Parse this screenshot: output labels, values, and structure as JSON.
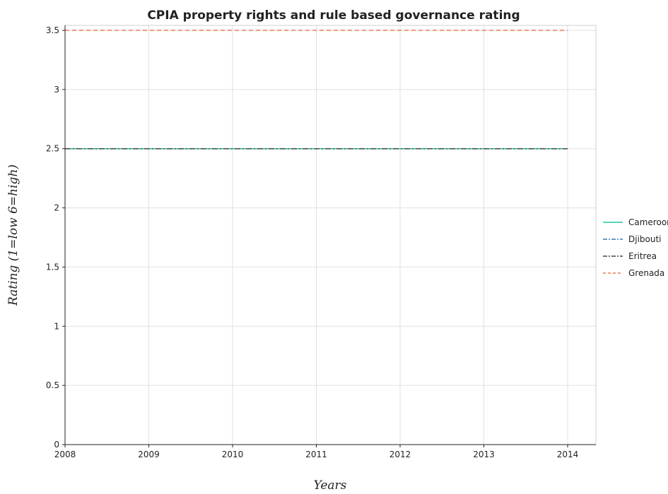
{
  "chart_data": {
    "type": "line",
    "title": "CPIA property rights and rule based governance rating",
    "xlabel": "Years",
    "ylabel": "Rating (1=low 6=high)",
    "categories": [
      "2008",
      "2009",
      "2010",
      "2011",
      "2012",
      "2013",
      "2014"
    ],
    "ylim": [
      0,
      3.5
    ],
    "yticks": [
      "0",
      "0.5",
      "1",
      "1.5",
      "2",
      "2.5",
      "3",
      "3.5"
    ],
    "grid": true,
    "legend_position": "right",
    "series": [
      {
        "name": "Cameroon",
        "values": [
          2.5,
          2.5,
          2.5,
          2.5,
          2.5,
          2.5,
          2.5
        ],
        "color": "#1ec8a0",
        "dash": "solid"
      },
      {
        "name": "Djibouti",
        "values": [
          2.5,
          2.5,
          2.5,
          2.5,
          2.5,
          2.5,
          2.5
        ],
        "color": "#3a78b8",
        "dash": "dashdot"
      },
      {
        "name": "Eritrea",
        "values": [
          2.5,
          2.5,
          2.5,
          2.5,
          2.5,
          2.5,
          2.5
        ],
        "color": "#444444",
        "dash": "dashdot"
      },
      {
        "name": "Grenada",
        "values": [
          3.5,
          3.5,
          3.5,
          3.5,
          3.5,
          3.5,
          3.5
        ],
        "color": "#f07850",
        "dash": "dashed"
      }
    ]
  }
}
